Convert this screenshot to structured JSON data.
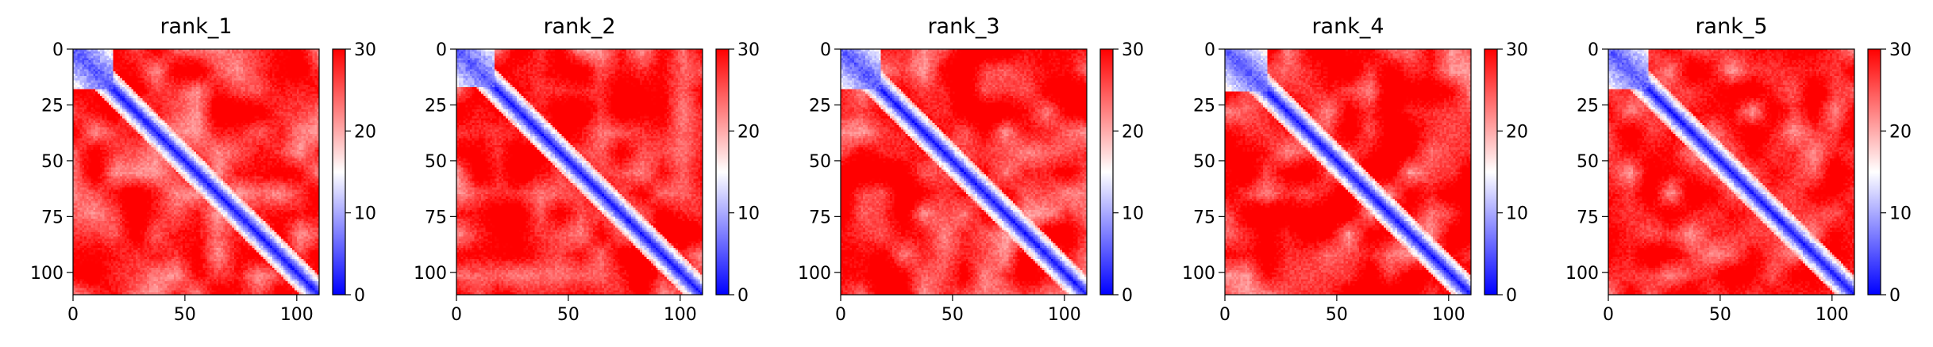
{
  "chart_data": [
    {
      "type": "heatmap",
      "title": "rank_1",
      "xlabel": "",
      "ylabel": "",
      "xlim": [
        0,
        110
      ],
      "ylim": [
        110,
        0
      ],
      "xticks": [
        0,
        50,
        100
      ],
      "yticks": [
        0,
        25,
        50,
        75,
        100
      ],
      "colorbar": {
        "min": 0,
        "max": 30,
        "ticks": [
          0,
          10,
          20,
          30
        ],
        "colormap": "bwr"
      },
      "matrix_size": 110,
      "description_values": {
        "diagonal": 0,
        "near_diagonal": 8,
        "off_diagonal": 28
      },
      "blue_block_end": 18
    },
    {
      "type": "heatmap",
      "title": "rank_2",
      "xlabel": "",
      "ylabel": "",
      "xlim": [
        0,
        110
      ],
      "ylim": [
        110,
        0
      ],
      "xticks": [
        0,
        50,
        100
      ],
      "yticks": [
        0,
        25,
        50,
        75,
        100
      ],
      "colorbar": {
        "min": 0,
        "max": 30,
        "ticks": [
          0,
          10,
          20,
          30
        ],
        "colormap": "bwr"
      },
      "matrix_size": 110,
      "description_values": {
        "diagonal": 0,
        "near_diagonal": 8,
        "off_diagonal": 28
      },
      "blue_block_end": 17
    },
    {
      "type": "heatmap",
      "title": "rank_3",
      "xlabel": "",
      "ylabel": "",
      "xlim": [
        0,
        110
      ],
      "ylim": [
        110,
        0
      ],
      "xticks": [
        0,
        50,
        100
      ],
      "yticks": [
        0,
        25,
        50,
        75,
        100
      ],
      "colorbar": {
        "min": 0,
        "max": 30,
        "ticks": [
          0,
          10,
          20,
          30
        ],
        "colormap": "bwr"
      },
      "matrix_size": 110,
      "description_values": {
        "diagonal": 0,
        "near_diagonal": 8,
        "off_diagonal": 28
      },
      "blue_block_end": 18
    },
    {
      "type": "heatmap",
      "title": "rank_4",
      "xlabel": "",
      "ylabel": "",
      "xlim": [
        0,
        110
      ],
      "ylim": [
        110,
        0
      ],
      "xticks": [
        0,
        50,
        100
      ],
      "yticks": [
        0,
        25,
        50,
        75,
        100
      ],
      "colorbar": {
        "min": 0,
        "max": 30,
        "ticks": [
          0,
          10,
          20,
          30
        ],
        "colormap": "bwr"
      },
      "matrix_size": 110,
      "description_values": {
        "diagonal": 0,
        "near_diagonal": 8,
        "off_diagonal": 28
      },
      "blue_block_end": 19
    },
    {
      "type": "heatmap",
      "title": "rank_5",
      "xlabel": "",
      "ylabel": "",
      "xlim": [
        0,
        110
      ],
      "ylim": [
        110,
        0
      ],
      "xticks": [
        0,
        50,
        100
      ],
      "yticks": [
        0,
        25,
        50,
        75,
        100
      ],
      "colorbar": {
        "min": 0,
        "max": 30,
        "ticks": [
          0,
          10,
          20,
          30
        ],
        "colormap": "bwr"
      },
      "matrix_size": 110,
      "description_values": {
        "diagonal": 0,
        "near_diagonal": 8,
        "off_diagonal": 28
      },
      "blue_block_end": 18
    }
  ],
  "colors": {
    "low": "#0000ff",
    "mid": "#ffffff",
    "high": "#ff0000",
    "axis": "#000000"
  }
}
